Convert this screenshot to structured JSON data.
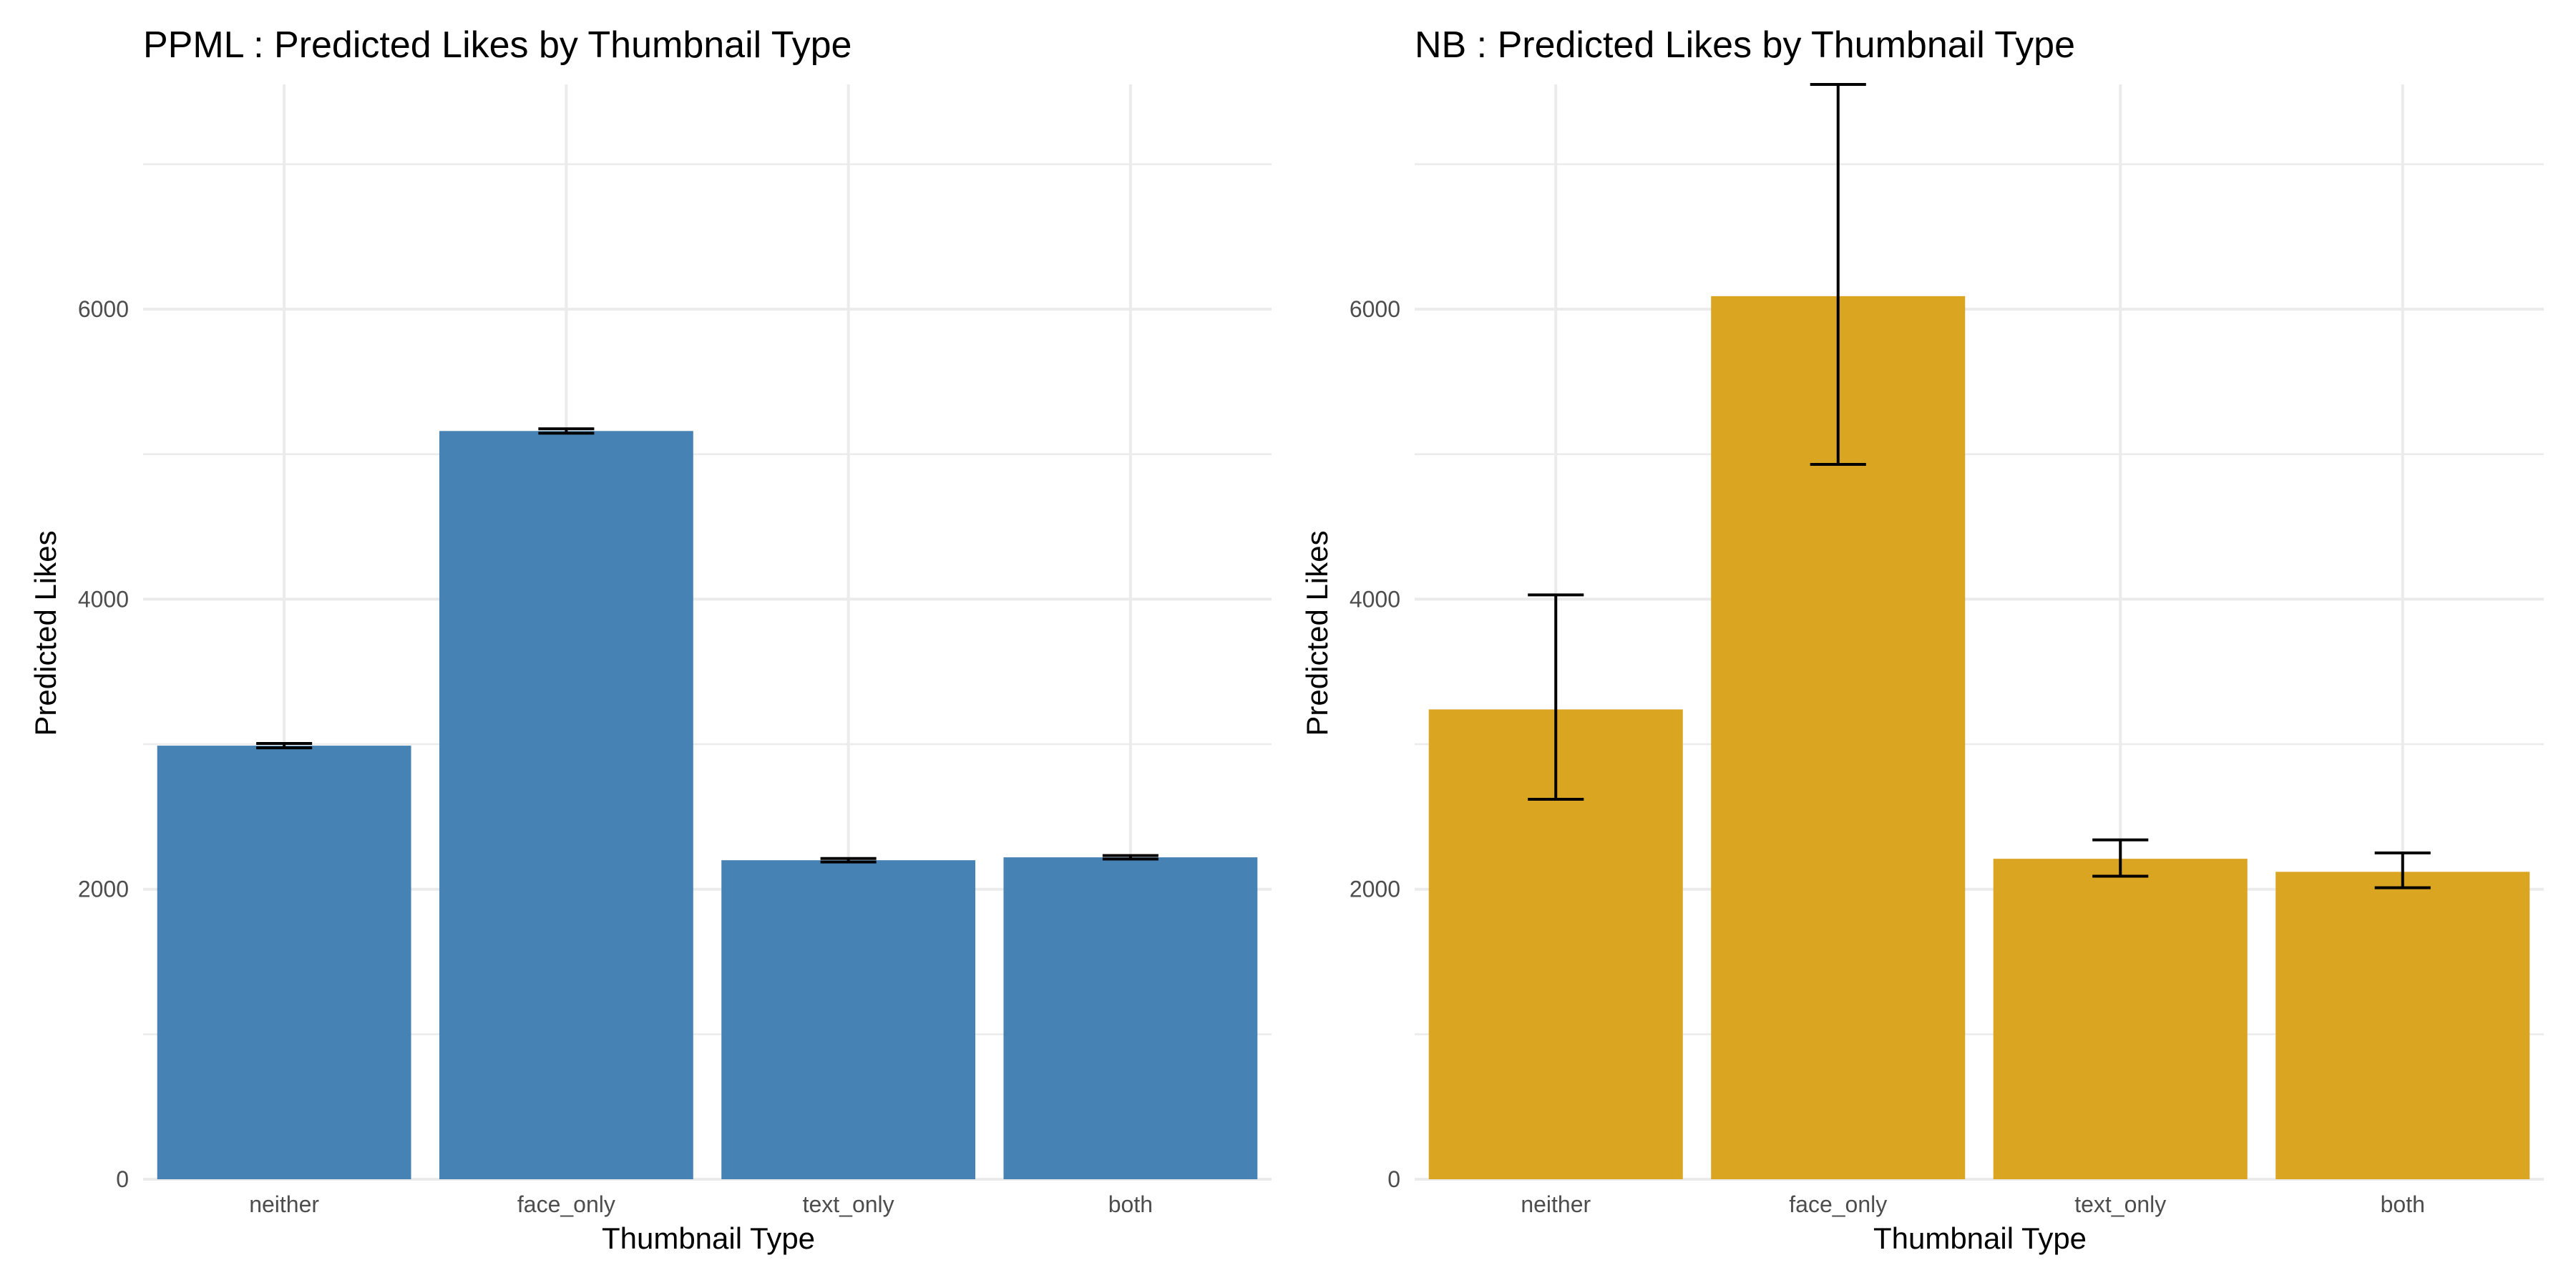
{
  "chart_data": [
    {
      "type": "bar",
      "title": "PPML : Predicted Likes by Thumbnail Type",
      "xlabel": "Thumbnail Type",
      "ylabel": "Predicted Likes",
      "categories": [
        "neither",
        "face_only",
        "text_only",
        "both"
      ],
      "values": [
        2990,
        5160,
        2200,
        2220
      ],
      "error_low": [
        2975,
        5145,
        2188,
        2208
      ],
      "error_high": [
        3005,
        5175,
        2212,
        2232
      ],
      "ylim": [
        0,
        7550
      ],
      "yticks": [
        0,
        2000,
        4000,
        6000
      ],
      "ytick_labels": [
        "0",
        "2000",
        "4000",
        "6000"
      ],
      "bar_color": "#4682B4",
      "grid": true
    },
    {
      "type": "bar",
      "title": "NB : Predicted Likes by Thumbnail Type",
      "xlabel": "Thumbnail Type",
      "ylabel": "Predicted Likes",
      "categories": [
        "neither",
        "face_only",
        "text_only",
        "both"
      ],
      "values": [
        3240,
        6090,
        2210,
        2120
      ],
      "error_low": [
        2620,
        4930,
        2090,
        2010
      ],
      "error_high": [
        4030,
        7550,
        2340,
        2250
      ],
      "ylim": [
        0,
        7550
      ],
      "yticks": [
        0,
        2000,
        4000,
        6000
      ],
      "ytick_labels": [
        "0",
        "2000",
        "4000",
        "6000"
      ],
      "bar_color": "#DAA520",
      "grid": true
    }
  ]
}
